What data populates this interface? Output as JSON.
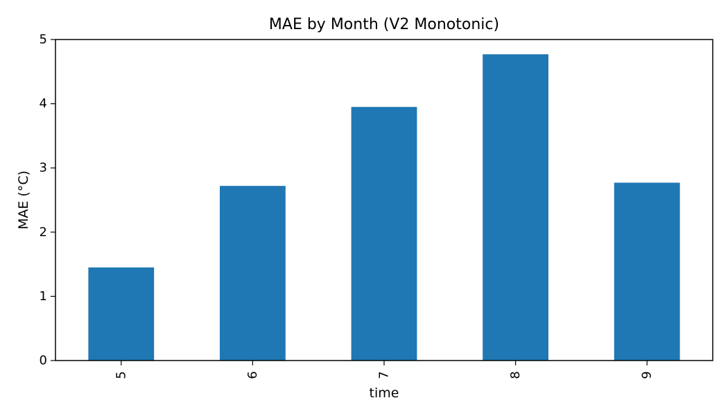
{
  "chart_data": {
    "type": "bar",
    "title": "MAE by Month (V2 Monotonic)",
    "xlabel": "time",
    "ylabel": "MAE (°C)",
    "categories": [
      "5",
      "6",
      "7",
      "8",
      "9"
    ],
    "values": [
      1.45,
      2.72,
      3.95,
      4.77,
      2.77
    ],
    "ylim": [
      0,
      5
    ],
    "yticks": [
      0,
      1,
      2,
      3,
      4,
      5
    ],
    "grid": false,
    "x_tick_rotation": "vertical",
    "bar_color": "#1f77b4"
  }
}
